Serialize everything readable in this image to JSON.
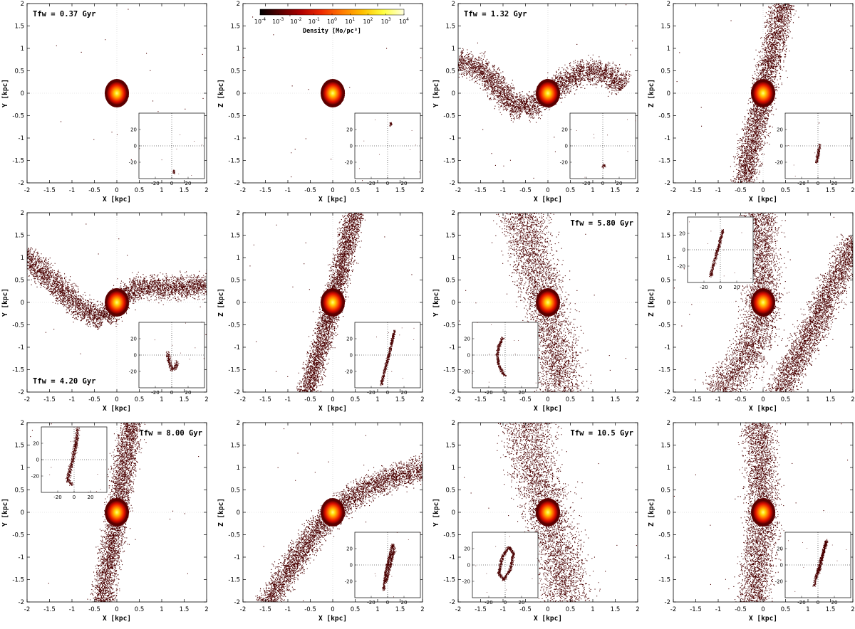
{
  "figure": {
    "colorbar": {
      "label": "Density [Mo/pc³]",
      "ticks": [
        "10-4",
        "10-3",
        "10-2",
        "10-1",
        "100",
        "101",
        "102",
        "103",
        "104"
      ],
      "scale": "log",
      "colors": [
        "#000000",
        "#5a0000",
        "#b00000",
        "#ee2a00",
        "#ff7a00",
        "#ffc000",
        "#ffff40",
        "#ffffe0"
      ]
    },
    "axis": {
      "xlim": [
        -2,
        2
      ],
      "ylim": [
        -2,
        2
      ],
      "ticks": [
        "-2",
        "-1.5",
        "-1",
        "-0.5",
        "0",
        "0.5",
        "1",
        "1.5",
        "2"
      ],
      "inset_lim": [
        -40,
        40
      ],
      "inset_ticks": [
        "-20",
        "0",
        "20"
      ]
    },
    "panels": [
      {
        "xlabel": "X [kpc]",
        "ylabel": "Y [kpc]",
        "time": "Tfw = 0.37 Gyr",
        "time_pos": "top-left",
        "inset_pos": "bottom-right"
      },
      {
        "xlabel": "X [kpc]",
        "ylabel": "Z [kpc]",
        "time": "",
        "time_pos": "",
        "inset_pos": "bottom-right"
      },
      {
        "xlabel": "X [kpc]",
        "ylabel": "Y [kpc]",
        "time": "Tfw = 1.32 Gyr",
        "time_pos": "top-left",
        "inset_pos": "bottom-right"
      },
      {
        "xlabel": "X [kpc]",
        "ylabel": "Z [kpc]",
        "time": "",
        "time_pos": "",
        "inset_pos": "bottom-right"
      },
      {
        "xlabel": "X [kpc]",
        "ylabel": "Y [kpc]",
        "time": "Tfw = 4.20 Gyr",
        "time_pos": "bottom-left",
        "inset_pos": "bottom-right"
      },
      {
        "xlabel": "X [kpc]",
        "ylabel": "Z [kpc]",
        "time": "",
        "time_pos": "",
        "inset_pos": "bottom-right"
      },
      {
        "xlabel": "X [kpc]",
        "ylabel": "Y [kpc]",
        "time": "Tfw = 5.80 Gyr",
        "time_pos": "top-right",
        "inset_pos": "bottom-left"
      },
      {
        "xlabel": "X [kpc]",
        "ylabel": "Z [kpc]",
        "time": "",
        "time_pos": "",
        "inset_pos": "top-left"
      },
      {
        "xlabel": "X [kpc]",
        "ylabel": "Y [kpc]",
        "time": "Tfw = 8.00 Gyr",
        "time_pos": "top-right",
        "inset_pos": "top-left"
      },
      {
        "xlabel": "X [kpc]",
        "ylabel": "Z [kpc]",
        "time": "",
        "time_pos": "",
        "inset_pos": "bottom-right"
      },
      {
        "xlabel": "X [kpc]",
        "ylabel": "Y [kpc]",
        "time": "Tfw = 10.5 Gyr",
        "time_pos": "top-right",
        "inset_pos": "bottom-left"
      },
      {
        "xlabel": "X [kpc]",
        "ylabel": "Z [kpc]",
        "time": "",
        "time_pos": "",
        "inset_pos": "bottom-right"
      }
    ]
  },
  "chart_data": {
    "type": "scatter",
    "grid": "3x4",
    "core": {
      "x": 0,
      "y": 0,
      "radius_kpc": 0.2
    },
    "panels": [
      {
        "projection": "X-Y",
        "main_streams": [],
        "inset_streams": [
          {
            "pts": [
              [
                2,
                -30
              ],
              [
                3,
                -33
              ]
            ],
            "w": 2
          }
        ]
      },
      {
        "projection": "X-Z",
        "main_streams": [],
        "inset_streams": [
          {
            "pts": [
              [
                4,
                28
              ],
              [
                3,
                25
              ]
            ],
            "w": 2
          }
        ]
      },
      {
        "projection": "X-Y",
        "main_streams": [
          {
            "pts": [
              [
                -2,
                0.7
              ],
              [
                -1.7,
                0.65
              ],
              [
                -1.4,
                0.5
              ],
              [
                -1.2,
                0.25
              ],
              [
                -1.0,
                -0.05
              ],
              [
                -0.8,
                -0.25
              ],
              [
                -0.55,
                -0.35
              ],
              [
                -0.25,
                -0.2
              ],
              [
                0,
                0
              ],
              [
                0.25,
                0.2
              ],
              [
                0.55,
                0.4
              ],
              [
                0.85,
                0.5
              ],
              [
                1.2,
                0.5
              ],
              [
                1.5,
                0.35
              ],
              [
                1.7,
                0.15
              ]
            ],
            "w": 0.3
          }
        ],
        "inset_streams": [
          {
            "pts": [
              [
                0,
                -25
              ],
              [
                2,
                -23
              ]
            ],
            "w": 4
          }
        ]
      },
      {
        "projection": "X-Z",
        "main_streams": [
          {
            "pts": [
              [
                -0.45,
                -2.1
              ],
              [
                -0.3,
                -1.3
              ],
              [
                -0.15,
                -0.6
              ],
              [
                0,
                0
              ],
              [
                0.12,
                0.6
              ],
              [
                0.28,
                1.3
              ],
              [
                0.45,
                2.1
              ]
            ],
            "w": 0.3
          }
        ],
        "inset_streams": [
          {
            "pts": [
              [
                -2,
                -20
              ],
              [
                0,
                -10
              ],
              [
                2,
                2
              ]
            ],
            "w": 3
          }
        ]
      },
      {
        "projection": "X-Y",
        "main_streams": [
          {
            "pts": [
              [
                -2.1,
                1.1
              ],
              [
                -1.85,
                0.85
              ],
              [
                -1.55,
                0.6
              ],
              [
                -1.25,
                0.3
              ],
              [
                -0.95,
                0.0
              ],
              [
                -0.65,
                -0.25
              ],
              [
                -0.3,
                -0.35
              ],
              [
                0,
                0
              ],
              [
                0.3,
                0.3
              ],
              [
                0.7,
                0.38
              ],
              [
                1.1,
                0.33
              ],
              [
                1.5,
                0.35
              ],
              [
                1.8,
                0.38
              ],
              [
                2.1,
                0.4
              ]
            ],
            "w": 0.28
          }
        ],
        "inset_streams": [
          {
            "pts": [
              [
                -5,
                3
              ],
              [
                -3,
                -10
              ],
              [
                0,
                -17
              ],
              [
                4,
                -15
              ],
              [
                6,
                -8
              ]
            ],
            "w": 4
          }
        ]
      },
      {
        "projection": "X-Z",
        "main_streams": [
          {
            "pts": [
              [
                -0.6,
                -2.1
              ],
              [
                -0.35,
                -1.2
              ],
              [
                -0.12,
                -0.4
              ],
              [
                0,
                0
              ],
              [
                0.1,
                0.4
              ],
              [
                0.3,
                1.3
              ],
              [
                0.5,
                2.1
              ]
            ],
            "w": 0.25
          }
        ],
        "inset_streams": [
          {
            "pts": [
              [
                -8,
                -36
              ],
              [
                -3,
                -15
              ],
              [
                2,
                3
              ],
              [
                8,
                30
              ]
            ],
            "w": 3
          }
        ]
      },
      {
        "projection": "X-Y",
        "main_streams": [
          {
            "pts": [
              [
                -0.6,
                2.1
              ],
              [
                -0.45,
                1.4
              ],
              [
                -0.25,
                0.7
              ],
              [
                -0.05,
                0
              ],
              [
                0.1,
                -0.6
              ],
              [
                0.2,
                -1.3
              ],
              [
                0.3,
                -2.1
              ]
            ],
            "w": 0.55
          }
        ],
        "inset_streams": [
          {
            "pts": [
              [
                -3,
                22
              ],
              [
                -8,
                12
              ],
              [
                -10,
                0
              ],
              [
                -8,
                -12
              ],
              [
                -3,
                -22
              ],
              [
                0,
                -25
              ]
            ],
            "w": 3
          }
        ]
      },
      {
        "projection": "X-Z",
        "main_streams": [
          {
            "pts": [
              [
                -0.1,
                2.1
              ],
              [
                -0.05,
                1.0
              ],
              [
                0,
                0
              ],
              [
                -0.2,
                -1.0
              ],
              [
                -0.6,
                -1.5
              ],
              [
                -1.0,
                -2.1
              ]
            ],
            "w": 0.45
          },
          {
            "pts": [
              [
                2.1,
                1.4
              ],
              [
                1.6,
                0.5
              ],
              [
                1.2,
                -0.4
              ],
              [
                0.8,
                -1.2
              ],
              [
                0.3,
                -2.1
              ]
            ],
            "w": 0.35
          }
        ],
        "inset_streams": [
          {
            "pts": [
              [
                -12,
                -32
              ],
              [
                -8,
                -15
              ],
              [
                -2,
                5
              ],
              [
                3,
                25
              ]
            ],
            "w": 3
          }
        ]
      },
      {
        "projection": "X-Y",
        "main_streams": [
          {
            "pts": [
              [
                -0.35,
                -2.1
              ],
              [
                -0.2,
                -1.2
              ],
              [
                -0.05,
                -0.3
              ],
              [
                0,
                0
              ],
              [
                0.08,
                0.5
              ],
              [
                0.2,
                1.3
              ],
              [
                0.32,
                2.1
              ]
            ],
            "w": 0.28
          }
        ],
        "inset_streams": [
          {
            "pts": [
              [
                4,
                38
              ],
              [
                2,
                20
              ],
              [
                -2,
                0
              ],
              [
                -6,
                -15
              ],
              [
                -8,
                -25
              ],
              [
                -3,
                -30
              ]
            ],
            "w": 4
          }
        ]
      },
      {
        "projection": "X-Z",
        "main_streams": [
          {
            "pts": [
              [
                -1.5,
                -2.1
              ],
              [
                -1.2,
                -1.6
              ],
              [
                -0.8,
                -1.0
              ],
              [
                -0.4,
                -0.4
              ],
              [
                0,
                0
              ],
              [
                0.4,
                0.35
              ],
              [
                0.9,
                0.6
              ],
              [
                1.3,
                0.8
              ],
              [
                1.7,
                0.9
              ],
              [
                2.1,
                1.0
              ]
            ],
            "w": 0.3
          }
        ],
        "inset_streams": [
          {
            "pts": [
              [
                -5,
                -30
              ],
              [
                -3,
                -10
              ],
              [
                2,
                10
              ],
              [
                6,
                25
              ],
              [
                8,
                20
              ],
              [
                4,
                5
              ],
              [
                -2,
                -20
              ]
            ],
            "w": 3
          }
        ]
      },
      {
        "projection": "X-Y",
        "main_streams": [
          {
            "pts": [
              [
                -0.5,
                2.1
              ],
              [
                -0.35,
                1.2
              ],
              [
                -0.15,
                0.4
              ],
              [
                0,
                0
              ],
              [
                0.15,
                -0.5
              ],
              [
                0.3,
                -1.3
              ],
              [
                0.45,
                -2.1
              ]
            ],
            "w": 0.6
          }
        ],
        "inset_streams": [
          {
            "pts": [
              [
                -8,
                -10
              ],
              [
                -4,
                10
              ],
              [
                4,
                22
              ],
              [
                10,
                15
              ],
              [
                6,
                -5
              ],
              [
                -2,
                -18
              ],
              [
                -8,
                -10
              ]
            ],
            "w": 3
          }
        ]
      },
      {
        "projection": "X-Z",
        "main_streams": [
          {
            "pts": [
              [
                -0.1,
                2.1
              ],
              [
                -0.05,
                1.0
              ],
              [
                0,
                0
              ],
              [
                -0.1,
                -0.9
              ],
              [
                -0.2,
                -2.1
              ]
            ],
            "w": 0.4
          }
        ],
        "inset_streams": [
          {
            "pts": [
              [
                -5,
                -25
              ],
              [
                0,
                -5
              ],
              [
                6,
                15
              ],
              [
                10,
                30
              ],
              [
                6,
                15
              ],
              [
                0,
                -10
              ]
            ],
            "w": 3
          }
        ]
      }
    ]
  }
}
